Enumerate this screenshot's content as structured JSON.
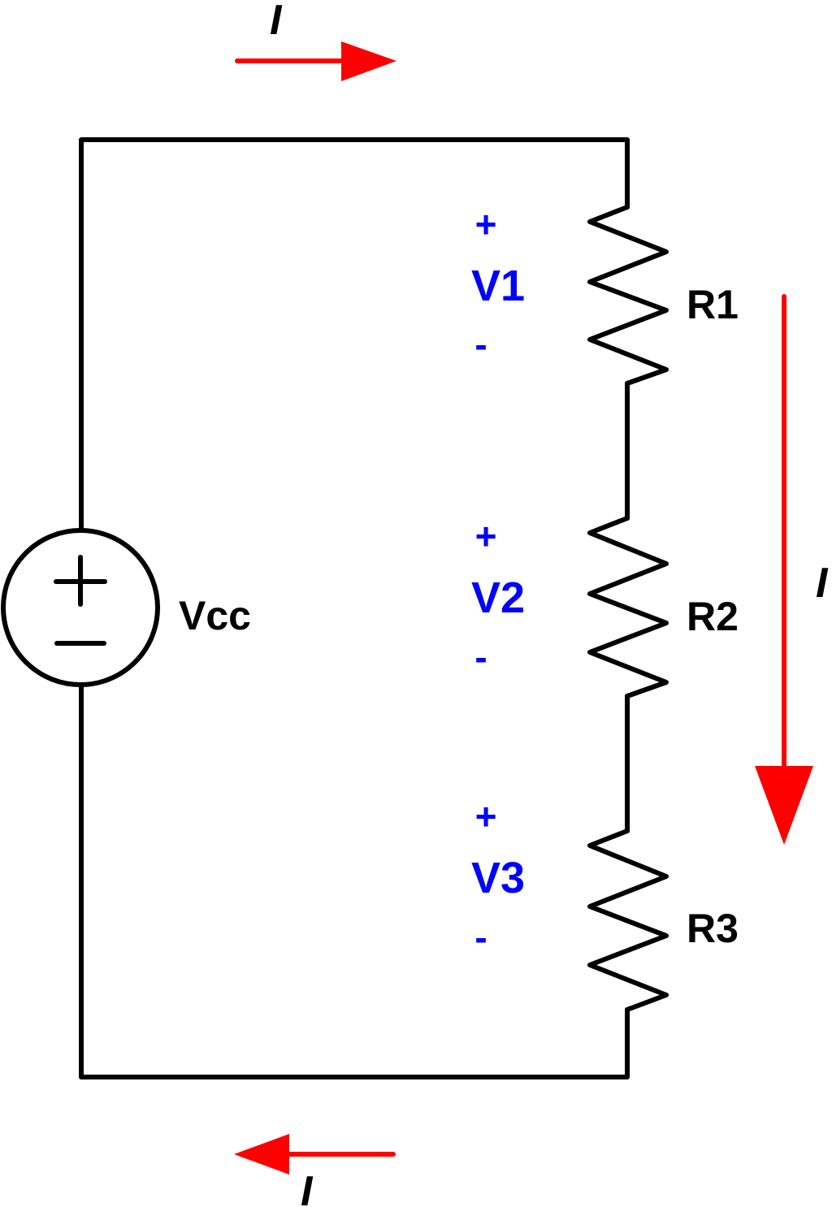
{
  "colors": {
    "wire": "#000000",
    "voltage": "#0000ff",
    "current": "#ff0000",
    "background": "#ffffff"
  },
  "source": {
    "label": "Vcc",
    "plus_sign_icon": "plus-icon",
    "minus_sign_icon": "minus-icon"
  },
  "resistors": [
    {
      "name": "R1",
      "voltage": {
        "plus": "+",
        "label": "V1",
        "minus": "-"
      }
    },
    {
      "name": "R2",
      "voltage": {
        "plus": "+",
        "label": "V2",
        "minus": "-"
      }
    },
    {
      "name": "R3",
      "voltage": {
        "plus": "+",
        "label": "V3",
        "minus": "-"
      }
    }
  ],
  "current": {
    "top": {
      "label": "I",
      "direction": "right"
    },
    "right": {
      "label": "I",
      "direction": "down"
    },
    "bottom": {
      "label": "I",
      "direction": "left"
    }
  }
}
